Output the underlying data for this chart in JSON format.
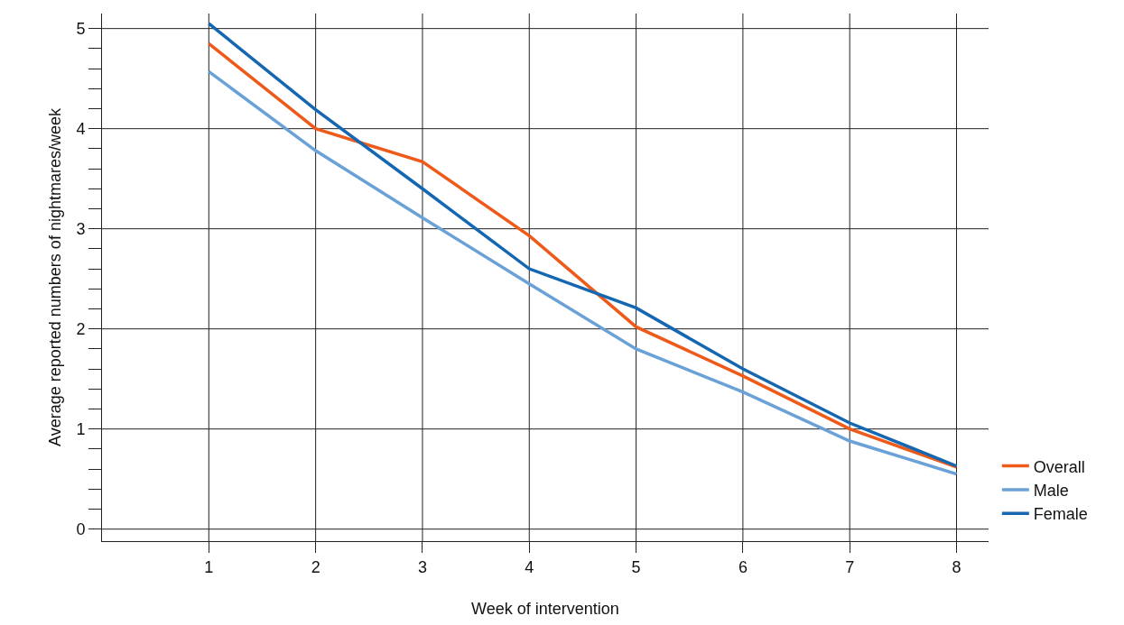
{
  "chart_data": {
    "type": "line",
    "xlabel": "Week of intervention",
    "ylabel": "Average reported numbers of nightmares/week",
    "x": [
      1,
      2,
      3,
      4,
      5,
      6,
      7,
      8
    ],
    "series": [
      {
        "name": "Overall",
        "color": "#ee5a1a",
        "values": [
          4.85,
          4.0,
          3.67,
          2.93,
          2.02,
          1.53,
          1.0,
          0.62
        ]
      },
      {
        "name": "Male",
        "color": "#6aa2d8",
        "values": [
          4.57,
          3.78,
          3.11,
          2.45,
          1.8,
          1.37,
          0.88,
          0.55
        ]
      },
      {
        "name": "Female",
        "color": "#1467b0",
        "values": [
          5.05,
          4.19,
          3.4,
          2.6,
          2.21,
          1.6,
          1.06,
          0.63
        ]
      }
    ],
    "xlim": [
      0,
      8.3
    ],
    "ylim": [
      -0.12,
      5.15
    ],
    "xticks": [
      1,
      2,
      3,
      4,
      5,
      6,
      7,
      8
    ],
    "yticks": [
      0,
      {
        "value": 0.2,
        "label": null
      },
      {
        "value": 0.4,
        "label": null
      },
      {
        "value": 0.6,
        "label": null
      },
      {
        "value": 0.8,
        "label": null
      },
      1,
      {
        "value": 1.2,
        "label": null
      },
      {
        "value": 1.4,
        "label": null
      },
      {
        "value": 1.6,
        "label": null
      },
      {
        "value": 1.8,
        "label": null
      },
      2,
      {
        "value": 2.2,
        "label": null
      },
      {
        "value": 2.4,
        "label": null
      },
      {
        "value": 2.6,
        "label": null
      },
      {
        "value": 2.8,
        "label": null
      },
      3,
      {
        "value": 3.2,
        "label": null
      },
      {
        "value": 3.4,
        "label": null
      },
      {
        "value": 3.6,
        "label": null
      },
      {
        "value": 3.8,
        "label": null
      },
      4,
      {
        "value": 4.2,
        "label": null
      },
      {
        "value": 4.4,
        "label": null
      },
      {
        "value": 4.6,
        "label": null
      },
      {
        "value": 4.8,
        "label": null
      },
      5
    ],
    "grid": true,
    "legend": "bottom right",
    "marker": "none",
    "line_style": "solid"
  }
}
